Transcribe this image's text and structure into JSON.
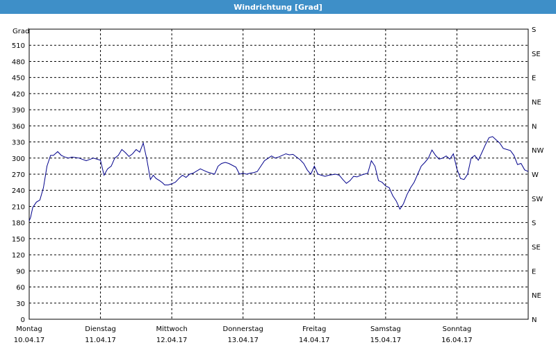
{
  "header": {
    "title": "Windrichtung [Grad]",
    "bg_color": "#3E8FC8"
  },
  "chart_data": {
    "type": "line",
    "title": "Windrichtung [Grad]",
    "ylabel": "Grad",
    "ylim": [
      0,
      540
    ],
    "grid": true,
    "grid_style": "dashed",
    "y_ticks": [
      0,
      30,
      60,
      90,
      120,
      150,
      180,
      210,
      240,
      270,
      300,
      330,
      360,
      390,
      420,
      450,
      480,
      510
    ],
    "right_axis_labels": [
      "N",
      "NE",
      "E",
      "SE",
      "S",
      "SW",
      "W",
      "NW",
      "N",
      "NE",
      "E",
      "SE",
      "S"
    ],
    "x_range": [
      0,
      7
    ],
    "x_ticks": [
      {
        "day": "Montag",
        "date": "10.04.17"
      },
      {
        "day": "Dienstag",
        "date": "11.04.17"
      },
      {
        "day": "Mittwoch",
        "date": "12.04.17"
      },
      {
        "day": "Donnerstag",
        "date": "13.04.17"
      },
      {
        "day": "Freitag",
        "date": "14.04.17"
      },
      {
        "day": "Samstag",
        "date": "15.04.17"
      },
      {
        "day": "Sonntag",
        "date": "16.04.17"
      }
    ],
    "series": [
      {
        "color": "#00008B",
        "x": [
          0,
          0.02,
          0.05,
          0.1,
          0.15,
          0.2,
          0.25,
          0.3,
          0.34,
          0.4,
          0.45,
          0.5,
          0.55,
          0.6,
          0.7,
          0.8,
          0.9,
          1.0,
          1.05,
          1.1,
          1.15,
          1.2,
          1.25,
          1.3,
          1.35,
          1.4,
          1.45,
          1.5,
          1.55,
          1.6,
          1.65,
          1.7,
          1.74,
          1.78,
          1.83,
          1.87,
          1.9,
          1.95,
          2.0,
          2.05,
          2.1,
          2.15,
          2.2,
          2.25,
          2.3,
          2.4,
          2.5,
          2.6,
          2.65,
          2.7,
          2.75,
          2.8,
          2.9,
          2.95,
          3.0,
          3.05,
          3.1,
          3.15,
          3.2,
          3.3,
          3.4,
          3.45,
          3.5,
          3.6,
          3.65,
          3.7,
          3.8,
          3.85,
          3.9,
          3.95,
          4.0,
          4.05,
          4.1,
          4.15,
          4.2,
          4.3,
          4.35,
          4.4,
          4.45,
          4.5,
          4.55,
          4.6,
          4.65,
          4.7,
          4.75,
          4.8,
          4.85,
          4.9,
          4.95,
          5.0,
          5.05,
          5.1,
          5.15,
          5.2,
          5.25,
          5.3,
          5.35,
          5.4,
          5.45,
          5.5,
          5.55,
          5.6,
          5.65,
          5.7,
          5.75,
          5.8,
          5.85,
          5.9,
          5.95,
          6.0,
          6.05,
          6.1,
          6.15,
          6.2,
          6.25,
          6.3,
          6.35,
          6.4,
          6.45,
          6.5,
          6.55,
          6.6,
          6.65,
          6.7,
          6.75,
          6.8,
          6.85,
          6.9,
          6.95,
          7.0
        ],
        "values": [
          183,
          190,
          208,
          218,
          222,
          245,
          285,
          305,
          305,
          312,
          305,
          302,
          300,
          302,
          300,
          295,
          300,
          296,
          268,
          280,
          285,
          300,
          305,
          316,
          310,
          303,
          308,
          316,
          311,
          328,
          298,
          260,
          268,
          262,
          258,
          254,
          250,
          250,
          252,
          255,
          262,
          268,
          264,
          270,
          272,
          280,
          274,
          270,
          285,
          290,
          292,
          290,
          283,
          270,
          272,
          270,
          272,
          273,
          275,
          295,
          304,
          300,
          302,
          308,
          306,
          307,
          297,
          290,
          278,
          270,
          285,
          270,
          268,
          266,
          268,
          270,
          268,
          260,
          253,
          258,
          266,
          265,
          268,
          270,
          272,
          295,
          285,
          258,
          255,
          248,
          245,
          230,
          220,
          205,
          215,
          232,
          245,
          255,
          270,
          285,
          292,
          300,
          315,
          305,
          298,
          300,
          304,
          298,
          308,
          280,
          262,
          260,
          270,
          300,
          305,
          296,
          310,
          325,
          338,
          340,
          334,
          328,
          318,
          316,
          314,
          305,
          288,
          290,
          278,
          275
        ]
      }
    ]
  }
}
